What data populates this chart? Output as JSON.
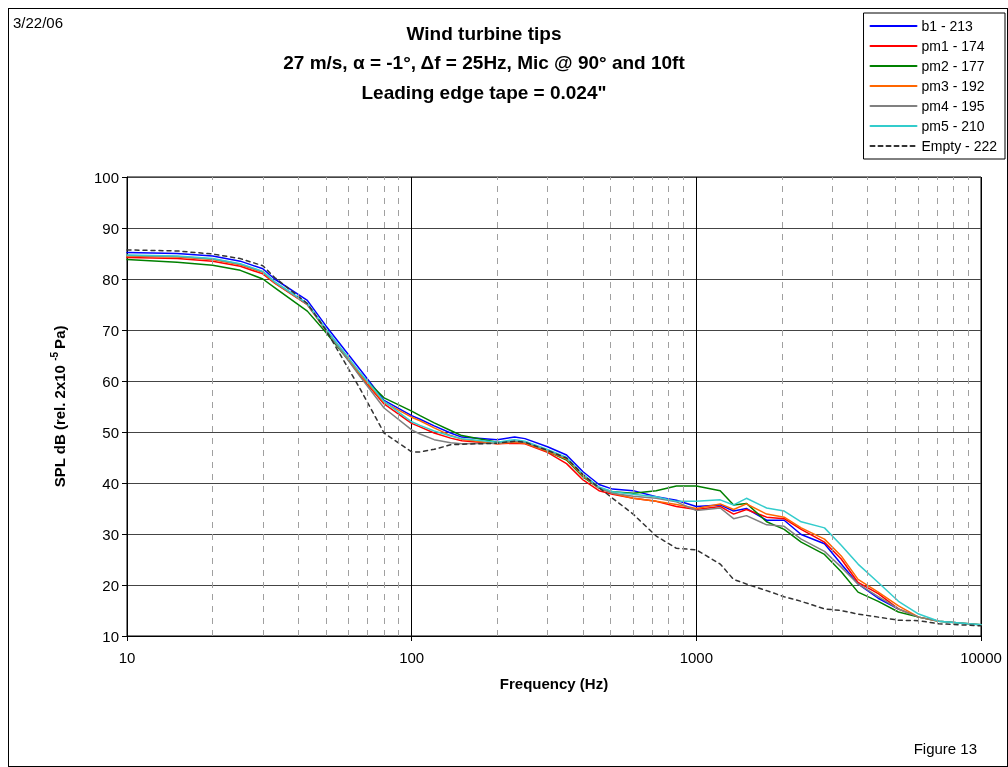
{
  "chart_data": {
    "type": "line",
    "title": "Wind turbine tips",
    "subtitle": "27 m/s, α = -1°, Δf = 25Hz, Mic @ 90° and 10ft\nLeading edge tape = 0.024\"",
    "xlabel": "Frequency (Hz)",
    "ylabel": "SPL dB (rel. 2x10 $^{-5}$Pa)",
    "annotations": [
      "3/22/06",
      "Figure 13"
    ],
    "x": [
      10,
      15,
      20,
      25,
      30,
      33,
      43,
      50,
      66,
      80,
      100,
      107,
      120,
      137,
      150,
      200,
      230,
      250,
      300,
      350,
      400,
      455,
      508,
      600,
      723,
      851,
      1000,
      1213,
      1352,
      1500,
      1766,
      2035,
      2335,
      2820,
      3228,
      3699,
      4355,
      5130,
      6040,
      7110,
      10000
    ],
    "series": [
      {
        "name": "b1 - 213",
        "color": "#0000ff",
        "values": [
          85.2,
          85,
          84.5,
          83.5,
          82,
          80,
          75.8,
          70.8,
          62.2,
          56.2,
          53.2,
          52.5,
          51.2,
          49.8,
          49,
          48.5,
          49,
          48.7,
          47.1,
          45.5,
          42.2,
          39.7,
          38.8,
          38.5,
          37.3,
          36.6,
          35.4,
          35.7,
          34.5,
          35,
          32.7,
          32.7,
          29.9,
          28.1,
          24.1,
          20.2,
          17.4,
          15.3,
          null,
          null,
          null
        ]
      },
      {
        "name": "pm1 - 174",
        "color": "#ff0000",
        "values": [
          84.2,
          84,
          83.5,
          82.5,
          81,
          79.2,
          75,
          70,
          61,
          55.5,
          51.7,
          51,
          49.8,
          48.8,
          48.3,
          47.7,
          47.8,
          47.7,
          46,
          43.8,
          40.6,
          38.5,
          37.8,
          37,
          36.4,
          35.4,
          34.8,
          35.4,
          33.9,
          34.8,
          33.3,
          33,
          30.9,
          28.4,
          25.1,
          20.5,
          18.3,
          15.3,
          13.7,
          null,
          null
        ]
      },
      {
        "name": "pm2 - 177",
        "color": "#008000",
        "values": [
          83.8,
          83.3,
          82.7,
          81.7,
          80,
          78.3,
          73.7,
          69.5,
          61.2,
          56.7,
          54.1,
          53.2,
          51.8,
          50.3,
          49.3,
          48,
          48,
          48,
          46.2,
          44.5,
          41.2,
          39,
          38.3,
          38,
          38.5,
          39.4,
          39.4,
          38.5,
          35.7,
          36,
          32.4,
          30.9,
          28.4,
          26,
          22.6,
          18.6,
          16.8,
          14.7,
          13.7,
          12.9,
          12.2
        ]
      },
      {
        "name": "pm3 - 192",
        "color": "#ff6600",
        "values": [
          84.5,
          84.3,
          83.8,
          82.8,
          81.3,
          79.3,
          75,
          70,
          61.2,
          55.8,
          52.9,
          52.2,
          50.8,
          49.3,
          48.6,
          47.7,
          48,
          47.8,
          46.2,
          44.7,
          41.4,
          39,
          38,
          37,
          36.4,
          35.8,
          35,
          35.9,
          34.8,
          35.9,
          33.9,
          33.3,
          31.2,
          29,
          25.7,
          21.1,
          18.6,
          15.9,
          13.7,
          12.9,
          null
        ]
      },
      {
        "name": "pm4 - 195",
        "color": "#808080",
        "values": [
          84.6,
          84.4,
          83.9,
          82.9,
          81.4,
          79.4,
          75,
          70,
          60.8,
          54.7,
          50.4,
          49.6,
          48.5,
          47.9,
          47.7,
          47.8,
          48.2,
          48,
          46.4,
          44.9,
          41.6,
          39,
          38,
          37.4,
          37,
          36.3,
          34.6,
          35.1,
          33,
          33.6,
          31.8,
          31.5,
          29,
          26.6,
          23.5,
          20.2,
          17.7,
          15.3,
          13.7,
          12.9,
          12.2
        ]
      },
      {
        "name": "pm5 - 210",
        "color": "#33cccc",
        "values": [
          84.7,
          84.5,
          84,
          83,
          81.5,
          79.5,
          75.2,
          70.2,
          61.6,
          56,
          52,
          51.3,
          50.2,
          49.2,
          48.7,
          48,
          48.5,
          48.2,
          46.6,
          45,
          41.7,
          39.2,
          38.3,
          37.8,
          37.3,
          36.4,
          36.4,
          36.7,
          35.7,
          37,
          35.1,
          34.5,
          32.4,
          31.2,
          27.8,
          24.1,
          20.5,
          16.8,
          14.3,
          12.9,
          12.2
        ]
      },
      {
        "name": "Empty - 222",
        "color": "#333333",
        "line_style": "dashed",
        "values": [
          85.7,
          85.5,
          84.9,
          84,
          82.6,
          80.3,
          75.2,
          70,
          58.4,
          49.8,
          46.1,
          46.1,
          46.6,
          47.5,
          47.6,
          47.8,
          48.2,
          48,
          46.4,
          44.9,
          41.6,
          39.1,
          37,
          33.9,
          29.6,
          27.2,
          26.9,
          24.1,
          21.1,
          20.2,
          18.9,
          17.7,
          16.8,
          15.3,
          15,
          14.3,
          13.7,
          13.1,
          13,
          12.4,
          12
        ]
      }
    ],
    "log": "x",
    "xlim": [
      10,
      10000
    ],
    "xticks": [
      10,
      100,
      1000,
      10000
    ],
    "ylim": [
      10,
      100
    ],
    "yticks": [
      10,
      20,
      30,
      40,
      50,
      60,
      70,
      80,
      90,
      100
    ],
    "grid": true,
    "legend": "top right",
    "marker": "none"
  }
}
